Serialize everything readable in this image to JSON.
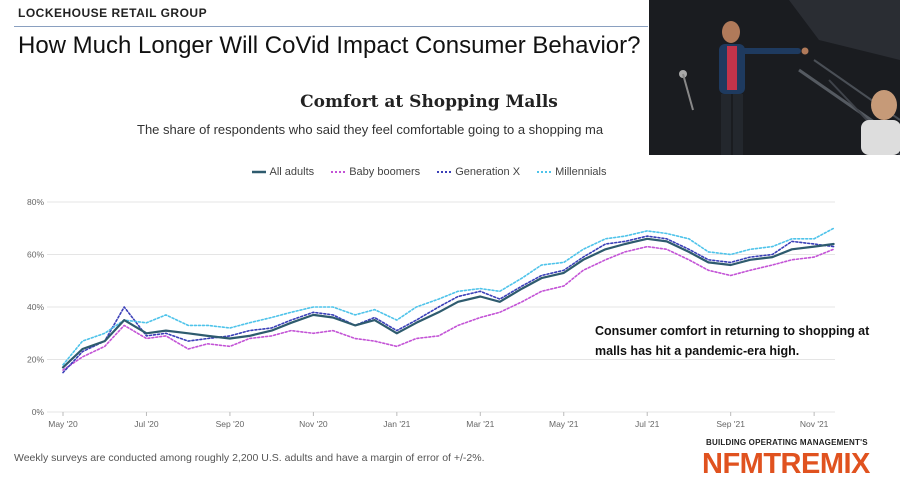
{
  "header": {
    "brand": "LOCKEHOUSE RETAIL GROUP",
    "slide_title": "How Much Longer Will CoVid Impact Consumer Behavior?"
  },
  "annotation": "Consumer comfort in returning to shopping at malls has hit a pandemic-era high.",
  "footnote": "Weekly surveys are conducted among roughly 2,200 U.S. adults and have a margin of error of +/-2%.",
  "logo": {
    "top": "BUILDING OPERATING MANAGEMENT'S",
    "main": "NFMTREMIX"
  },
  "photo": {
    "description": "speaker-presenting-photo"
  },
  "colors": {
    "all_adults": "#2e5b6e",
    "baby_boomers": "#c353d6",
    "generation_x": "#3a3fb8",
    "millennials": "#4ec3ea",
    "grid": "#e5e5e5",
    "logo_orange": "#e0521f"
  },
  "chart_data": {
    "type": "line",
    "title": "Comfort at Shopping Malls",
    "subtitle": "The share of respondents who said they feel comfortable going to a shopping ma",
    "x_tick_labels": [
      "May '20",
      "Jul '20",
      "Sep '20",
      "Nov '20",
      "Jan '21",
      "Mar '21",
      "May '21",
      "Jul '21",
      "Sep '21",
      "Nov '21"
    ],
    "y_tick_labels": [
      "0%",
      "20%",
      "40%",
      "60%",
      "80%"
    ],
    "y_unit": "%",
    "ylim": [
      0,
      80
    ],
    "grid": true,
    "legend_position": "top",
    "x": [
      "2020-05-01",
      "2020-05-15",
      "2020-06-01",
      "2020-06-15",
      "2020-07-01",
      "2020-07-15",
      "2020-08-01",
      "2020-08-15",
      "2020-09-01",
      "2020-09-15",
      "2020-10-01",
      "2020-10-15",
      "2020-11-01",
      "2020-11-15",
      "2020-12-01",
      "2020-12-15",
      "2021-01-01",
      "2021-01-15",
      "2021-02-01",
      "2021-02-15",
      "2021-03-01",
      "2021-03-15",
      "2021-04-01",
      "2021-04-15",
      "2021-05-01",
      "2021-05-15",
      "2021-06-01",
      "2021-06-15",
      "2021-07-01",
      "2021-07-15",
      "2021-08-01",
      "2021-08-15",
      "2021-09-01",
      "2021-09-15",
      "2021-10-01",
      "2021-10-15",
      "2021-11-01",
      "2021-11-15"
    ],
    "series": [
      {
        "name": "All adults",
        "values": [
          17,
          24,
          27,
          35,
          30,
          31,
          30,
          29,
          28,
          29,
          31,
          34,
          37,
          36,
          33,
          35,
          30,
          34,
          38,
          42,
          44,
          42,
          47,
          51,
          53,
          58,
          62,
          64,
          66,
          65,
          61,
          57,
          56,
          58,
          59,
          62,
          63,
          64
        ]
      },
      {
        "name": "Baby boomers",
        "values": [
          16,
          21,
          25,
          33,
          28,
          29,
          24,
          26,
          25,
          28,
          29,
          31,
          30,
          31,
          28,
          27,
          25,
          28,
          29,
          33,
          36,
          38,
          42,
          46,
          48,
          54,
          58,
          61,
          63,
          62,
          58,
          54,
          52,
          54,
          56,
          58,
          59,
          62
        ]
      },
      {
        "name": "Generation X",
        "values": [
          15,
          23,
          27,
          40,
          29,
          30,
          27,
          28,
          29,
          31,
          32,
          35,
          38,
          37,
          33,
          36,
          31,
          35,
          40,
          44,
          46,
          43,
          48,
          52,
          54,
          59,
          64,
          65,
          67,
          66,
          62,
          58,
          57,
          59,
          60,
          65,
          64,
          63
        ]
      },
      {
        "name": "Millennials",
        "values": [
          18,
          27,
          30,
          35,
          34,
          37,
          33,
          33,
          32,
          34,
          36,
          38,
          40,
          40,
          37,
          39,
          35,
          40,
          43,
          46,
          47,
          46,
          51,
          56,
          57,
          62,
          66,
          67,
          69,
          68,
          66,
          61,
          60,
          62,
          63,
          66,
          66,
          70
        ]
      }
    ]
  }
}
